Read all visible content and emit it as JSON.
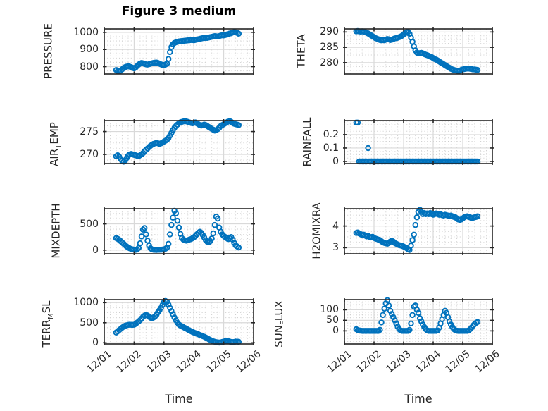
{
  "figure": {
    "title": "Figure 3 medium",
    "xlabel": "Time",
    "marker_color": "#0072BD",
    "axis_color": "#262626",
    "grid_major_color": "#d9d9d9",
    "grid_minor_color": "#cdcdcd",
    "x_tick_labels": [
      "12/01",
      "12/02",
      "12/03",
      "12/04",
      "12/05",
      "12/06"
    ]
  },
  "chart_data": [
    {
      "id": "pressure",
      "type": "scatter",
      "marker": "circle-open",
      "ylabel": "PRESSURE",
      "ylabel_parts": [
        [
          "n",
          "PRESSURE"
        ]
      ],
      "xlim": [
        1,
        6
      ],
      "ylim": [
        757,
        1020
      ],
      "yticks": [
        800,
        900,
        1000
      ],
      "ytick_labels": [
        "800",
        "900",
        "1000"
      ],
      "x_start_day": 1.4,
      "x_step_day": 0.05,
      "values": [
        780,
        774,
        772,
        776,
        784,
        792,
        797,
        800,
        802,
        800,
        797,
        793,
        790,
        795,
        803,
        812,
        818,
        821,
        819,
        816,
        813,
        812,
        814,
        817,
        820,
        822,
        823,
        824,
        821,
        817,
        813,
        810,
        809,
        812,
        818,
        845,
        885,
        915,
        930,
        938,
        942,
        945,
        947,
        948,
        949,
        950,
        951,
        952,
        953,
        954,
        955,
        955,
        954,
        956,
        958,
        960,
        962,
        964,
        966,
        967,
        967,
        968,
        970,
        972,
        974,
        976,
        978,
        977,
        976,
        978,
        981,
        983,
        982,
        984,
        987,
        990,
        993,
        995,
        999,
        1001,
        1000,
        997,
        992
      ]
    },
    {
      "id": "theta",
      "type": "scatter",
      "marker": "circle-open",
      "ylabel": "THETA",
      "ylabel_parts": [
        [
          "n",
          "THETA"
        ]
      ],
      "xlim": [
        1,
        6
      ],
      "ylim": [
        276.3,
        291.0
      ],
      "yticks": [
        280,
        285,
        290
      ],
      "ytick_labels": [
        "280",
        "285",
        "290"
      ],
      "x_start_day": 1.4,
      "x_step_day": 0.05,
      "values": [
        290.2,
        290.3,
        290.2,
        290.1,
        290.2,
        290.1,
        290.0,
        289.8,
        289.5,
        289.2,
        288.9,
        288.6,
        288.3,
        288.0,
        287.8,
        287.6,
        287.4,
        287.3,
        287.4,
        287.3,
        287.5,
        287.7,
        287.6,
        287.4,
        287.5,
        287.7,
        287.9,
        288.0,
        288.1,
        288.3,
        288.5,
        288.8,
        289.2,
        289.6,
        289.9,
        290.0,
        289.4,
        288.2,
        286.8,
        285.3,
        284.0,
        283.3,
        283.0,
        283.1,
        283.2,
        283.0,
        282.8,
        282.6,
        282.4,
        282.2,
        282.0,
        281.8,
        281.5,
        281.2,
        281.0,
        280.7,
        280.4,
        280.1,
        279.8,
        279.5,
        279.2,
        278.9,
        278.6,
        278.3,
        278.0,
        277.8,
        277.6,
        277.5,
        277.4,
        277.3,
        277.4,
        277.6,
        277.8,
        277.9,
        278.0,
        278.1,
        278.1,
        278.0,
        277.9,
        277.8,
        277.8,
        277.7,
        277.6
      ]
    },
    {
      "id": "air_temp",
      "type": "scatter",
      "marker": "circle-open",
      "ylabel": "AIR_TEMP",
      "ylabel_parts": [
        [
          "n",
          "AIR"
        ],
        [
          "s",
          "T"
        ],
        [
          "n",
          "EMP"
        ]
      ],
      "xlim": [
        1,
        6
      ],
      "ylim": [
        268.0,
        277.4
      ],
      "yticks": [
        270,
        275
      ],
      "ytick_labels": [
        "270",
        "275"
      ],
      "x_start_day": 1.4,
      "x_step_day": 0.05,
      "values": [
        269.6,
        269.8,
        269.5,
        269.0,
        268.6,
        268.4,
        268.7,
        269.2,
        269.7,
        270.0,
        270.1,
        270.0,
        269.9,
        269.8,
        269.7,
        269.6,
        269.8,
        270.0,
        270.3,
        270.7,
        271.0,
        271.3,
        271.6,
        271.9,
        272.1,
        272.3,
        272.4,
        272.5,
        272.4,
        272.3,
        272.4,
        272.6,
        272.8,
        273.0,
        273.2,
        273.6,
        274.1,
        274.7,
        275.3,
        275.8,
        276.2,
        276.5,
        276.8,
        277.0,
        277.1,
        277.2,
        277.3,
        277.2,
        277.1,
        277.0,
        276.9,
        276.8,
        276.9,
        277.0,
        276.8,
        276.6,
        276.4,
        276.3,
        276.4,
        276.5,
        276.4,
        276.2,
        276.0,
        275.8,
        275.6,
        275.4,
        275.2,
        275.3,
        275.5,
        275.8,
        276.2,
        276.4,
        276.6,
        276.8,
        277.0,
        277.2,
        277.3,
        277.1,
        276.9,
        276.7,
        276.6,
        276.5,
        276.4
      ]
    },
    {
      "id": "rainfall",
      "type": "scatter",
      "marker": "circle-open",
      "ylabel": "RAINFALL",
      "ylabel_parts": [
        [
          "n",
          "RAINFALL"
        ]
      ],
      "xlim": [
        1,
        6
      ],
      "ylim": [
        -0.016,
        0.305
      ],
      "yticks": [
        0,
        0.1,
        0.2
      ],
      "ytick_labels": [
        "0",
        "0.1",
        "0.2"
      ],
      "x_start_day": 1.4,
      "x_step_day": 0.05,
      "values": [
        0.29,
        0.29,
        0,
        0,
        0,
        0,
        0,
        0,
        0.1,
        0,
        0,
        0,
        0,
        0,
        0,
        0,
        0,
        0,
        0,
        0,
        0,
        0,
        0,
        0,
        0,
        0,
        0,
        0,
        0,
        0,
        0,
        0,
        0,
        0,
        0,
        0,
        0,
        0,
        0,
        0,
        0,
        0,
        0,
        0,
        0,
        0,
        0,
        0,
        0,
        0,
        0,
        0,
        0,
        0,
        0,
        0,
        0,
        0,
        0,
        0,
        0,
        0,
        0,
        0,
        0,
        0,
        0,
        0,
        0,
        0,
        0,
        0,
        0,
        0,
        0,
        0,
        0,
        0,
        0,
        0,
        0,
        0,
        0
      ]
    },
    {
      "id": "mixdepth",
      "type": "scatter",
      "marker": "circle-open",
      "ylabel": "MIXDEPTH",
      "ylabel_parts": [
        [
          "n",
          "MIXDEPTH"
        ]
      ],
      "xlim": [
        1,
        6
      ],
      "ylim": [
        -70,
        790
      ],
      "yticks": [
        0,
        500
      ],
      "ytick_labels": [
        "0",
        "500"
      ],
      "x_start_day": 1.4,
      "x_step_day": 0.05,
      "values": [
        230,
        215,
        195,
        170,
        145,
        120,
        95,
        70,
        50,
        35,
        22,
        14,
        8,
        5,
        10,
        40,
        130,
        260,
        390,
        420,
        300,
        180,
        90,
        35,
        15,
        8,
        5,
        4,
        5,
        6,
        8,
        10,
        15,
        25,
        45,
        120,
        300,
        480,
        620,
        750,
        700,
        560,
        430,
        310,
        230,
        200,
        185,
        180,
        190,
        200,
        210,
        225,
        245,
        270,
        300,
        330,
        350,
        330,
        290,
        240,
        190,
        160,
        150,
        170,
        220,
        320,
        480,
        640,
        600,
        430,
        350,
        300,
        270,
        250,
        230,
        210,
        230,
        250,
        200,
        140,
        90,
        70,
        50
      ]
    },
    {
      "id": "h2omixra",
      "type": "scatter",
      "marker": "circle-open",
      "ylabel": "H2OMIXRA",
      "ylabel_parts": [
        [
          "n",
          "H2OMIXRA"
        ]
      ],
      "xlim": [
        1,
        6
      ],
      "ylim": [
        2.72,
        4.8
      ],
      "yticks": [
        3,
        4
      ],
      "ytick_labels": [
        "3",
        "4"
      ],
      "x_start_day": 1.4,
      "x_step_day": 0.05,
      "values": [
        3.68,
        3.7,
        3.66,
        3.62,
        3.58,
        3.6,
        3.56,
        3.52,
        3.55,
        3.5,
        3.47,
        3.5,
        3.45,
        3.42,
        3.4,
        3.37,
        3.35,
        3.3,
        3.25,
        3.22,
        3.2,
        3.18,
        3.22,
        3.28,
        3.32,
        3.28,
        3.22,
        3.18,
        3.15,
        3.12,
        3.1,
        3.08,
        3.05,
        3.02,
        2.98,
        2.92,
        2.9,
        3.1,
        3.35,
        3.6,
        4.05,
        4.4,
        4.65,
        4.75,
        4.65,
        4.55,
        4.6,
        4.55,
        4.58,
        4.55,
        4.6,
        4.55,
        4.52,
        4.55,
        4.58,
        4.55,
        4.52,
        4.55,
        4.5,
        4.48,
        4.52,
        4.5,
        4.48,
        4.45,
        4.48,
        4.45,
        4.42,
        4.4,
        4.35,
        4.3,
        4.28,
        4.3,
        4.35,
        4.4,
        4.44,
        4.45,
        4.42,
        4.4,
        4.36,
        4.38,
        4.4,
        4.42,
        4.45
      ]
    },
    {
      "id": "terr_msl",
      "type": "scatter",
      "marker": "circle-open",
      "ylabel": "TERR_MSL",
      "ylabel_parts": [
        [
          "n",
          "TERR"
        ],
        [
          "s",
          "M"
        ],
        [
          "n",
          "SL"
        ]
      ],
      "xlim": [
        1,
        6
      ],
      "ylim": [
        -30,
        1075
      ],
      "yticks": [
        0,
        500,
        1000
      ],
      "ytick_labels": [
        "0",
        "500",
        "1000"
      ],
      "x_start_day": 1.4,
      "x_step_day": 0.05,
      "values": [
        255,
        285,
        315,
        345,
        375,
        405,
        425,
        435,
        445,
        450,
        448,
        445,
        450,
        470,
        500,
        530,
        565,
        605,
        645,
        675,
        695,
        680,
        650,
        625,
        615,
        630,
        660,
        700,
        760,
        810,
        870,
        940,
        1010,
        1040,
        1020,
        950,
        870,
        790,
        710,
        630,
        560,
        500,
        455,
        430,
        410,
        390,
        370,
        350,
        330,
        310,
        290,
        270,
        255,
        240,
        225,
        210,
        195,
        180,
        165,
        150,
        130,
        110,
        90,
        70,
        50,
        35,
        25,
        15,
        10,
        5,
        10,
        20,
        30,
        40,
        45,
        40,
        30,
        20,
        15,
        20,
        30,
        30,
        25
      ]
    },
    {
      "id": "sun_flux",
      "type": "scatter",
      "marker": "circle-open",
      "ylabel": "SUN_FLUX",
      "ylabel_parts": [
        [
          "n",
          "SUN"
        ],
        [
          "s",
          "F"
        ],
        [
          "n",
          "LUX"
        ]
      ],
      "xlim": [
        1,
        6
      ],
      "ylim": [
        -62,
        148
      ],
      "yticks": [
        0,
        50,
        100
      ],
      "ytick_labels": [
        "0",
        "50",
        "100"
      ],
      "x_start_day": 1.4,
      "x_step_day": 0.05,
      "values": [
        8,
        4,
        2,
        1,
        0,
        0,
        0,
        0,
        0,
        0,
        0,
        0,
        0,
        0,
        0,
        0,
        5,
        40,
        75,
        105,
        130,
        145,
        120,
        95,
        80,
        65,
        50,
        35,
        20,
        8,
        2,
        0,
        0,
        0,
        0,
        0,
        5,
        35,
        75,
        115,
        120,
        100,
        85,
        60,
        45,
        30,
        18,
        8,
        2,
        0,
        0,
        0,
        0,
        0,
        0,
        2,
        15,
        35,
        55,
        75,
        95,
        85,
        65,
        45,
        30,
        18,
        8,
        3,
        1,
        0,
        0,
        0,
        0,
        0,
        0,
        0,
        2,
        8,
        16,
        25,
        32,
        38,
        42
      ]
    }
  ]
}
